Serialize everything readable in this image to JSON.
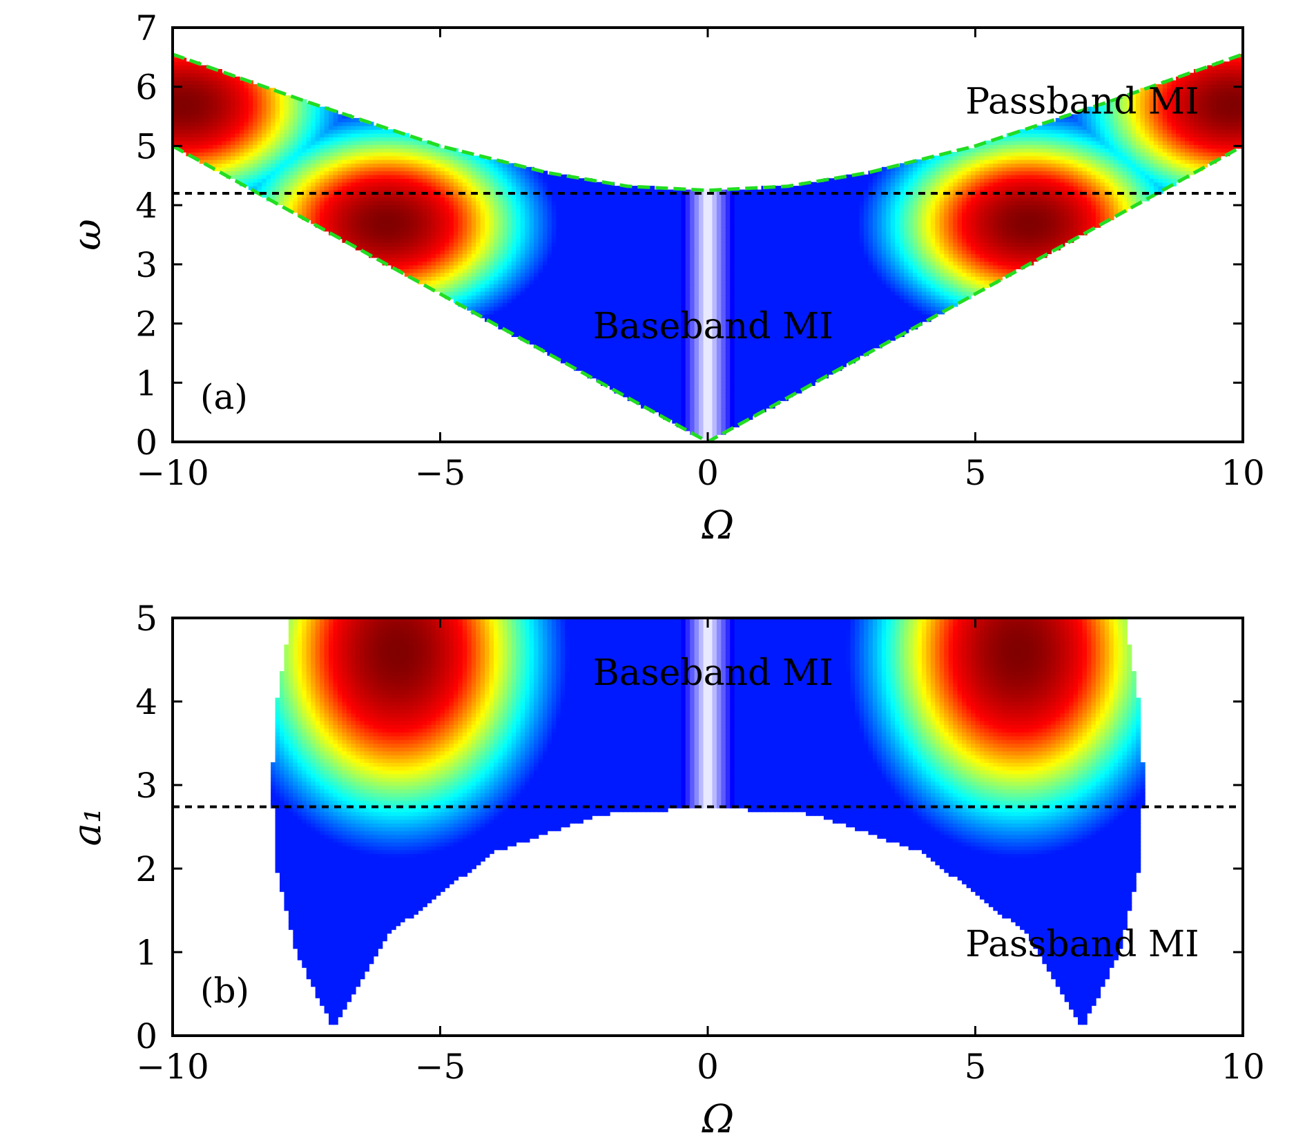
{
  "chart_data": [
    {
      "type": "heatmap",
      "panel_label": "(a)",
      "xlabel": "Ω",
      "ylabel": "ω",
      "xlim": [
        -10,
        10
      ],
      "ylim": [
        0,
        7
      ],
      "x_ticks": [
        {
          "value": -10,
          "label": "−10"
        },
        {
          "value": -5,
          "label": "−5"
        },
        {
          "value": 0,
          "label": "0"
        },
        {
          "value": 5,
          "label": "5"
        },
        {
          "value": 10,
          "label": "10"
        }
      ],
      "y_ticks": [
        {
          "value": 0,
          "label": "0"
        },
        {
          "value": 1,
          "label": "1"
        },
        {
          "value": 2,
          "label": "2"
        },
        {
          "value": 3,
          "label": "3"
        },
        {
          "value": 4,
          "label": "4"
        },
        {
          "value": 5,
          "label": "5"
        },
        {
          "value": 6,
          "label": "6"
        },
        {
          "value": 7,
          "label": "7"
        }
      ],
      "colormap": [
        "#ffffff",
        "#0000ff",
        "#00ffff",
        "#ffff00",
        "#ff0000",
        "#800000"
      ],
      "region_upper_boundary": [
        [
          -10,
          6.55
        ],
        [
          -7.5,
          5.75
        ],
        [
          -5,
          5.0
        ],
        [
          -3,
          4.55
        ],
        [
          -1.5,
          4.32
        ],
        [
          0,
          4.25
        ],
        [
          1.5,
          4.32
        ],
        [
          3,
          4.55
        ],
        [
          5,
          5.0
        ],
        [
          7.5,
          5.75
        ],
        [
          10,
          6.55
        ]
      ],
      "region_lower_boundary": [
        [
          -10,
          5.0
        ],
        [
          -5,
          2.5
        ],
        [
          0,
          0
        ],
        [
          5,
          2.5
        ],
        [
          10,
          5.0
        ]
      ],
      "peaks": [
        [
          -9.8,
          5.7
        ],
        [
          -6,
          3.7
        ],
        [
          6,
          3.7
        ],
        [
          9.8,
          5.7
        ]
      ],
      "dashed_line_value": 4.2,
      "boundary_color": "#22dd22",
      "dashed_line_color": "#000000",
      "annotations": [
        {
          "text": "Passband MI",
          "x": 7,
          "y": 5.55
        },
        {
          "text": "Baseband MI",
          "x": 0.1,
          "y": 1.75
        }
      ]
    },
    {
      "type": "heatmap",
      "panel_label": "(b)",
      "xlabel": "Ω",
      "ylabel": "a₁",
      "xlim": [
        -10,
        10
      ],
      "ylim": [
        0,
        5
      ],
      "x_ticks": [
        {
          "value": -10,
          "label": "−10"
        },
        {
          "value": -5,
          "label": "−5"
        },
        {
          "value": 0,
          "label": "0"
        },
        {
          "value": 5,
          "label": "5"
        },
        {
          "value": 10,
          "label": "10"
        }
      ],
      "y_ticks": [
        {
          "value": 0,
          "label": "0"
        },
        {
          "value": 1,
          "label": "1"
        },
        {
          "value": 2,
          "label": "2"
        },
        {
          "value": 3,
          "label": "3"
        },
        {
          "value": 4,
          "label": "4"
        },
        {
          "value": 5,
          "label": "5"
        }
      ],
      "colormap": [
        "#ffffff",
        "#0000ff",
        "#00ffff",
        "#ffff00",
        "#ff0000",
        "#800000"
      ],
      "region_outer_boundary": [
        [
          -7,
          0.1
        ],
        [
          -7.7,
          1.0
        ],
        [
          -8.05,
          2.0
        ],
        [
          -8.15,
          3.0
        ],
        [
          -8.05,
          4.0
        ],
        [
          -7.8,
          5.0
        ]
      ],
      "region_inner_boundary": [
        [
          -7,
          0.1
        ],
        [
          -6,
          1.2
        ],
        [
          -4,
          2.2
        ],
        [
          -2,
          2.65
        ],
        [
          0,
          2.74
        ]
      ],
      "peaks": [
        [
          -5.8,
          4.6
        ],
        [
          5.8,
          4.6
        ]
      ],
      "dashed_line_value": 2.74,
      "dashed_line_color": "#000000",
      "annotations": [
        {
          "text": "Baseband MI",
          "x": 0.1,
          "y": 4.2
        },
        {
          "text": "Passband MI",
          "x": 7,
          "y": 0.95
        }
      ]
    }
  ]
}
